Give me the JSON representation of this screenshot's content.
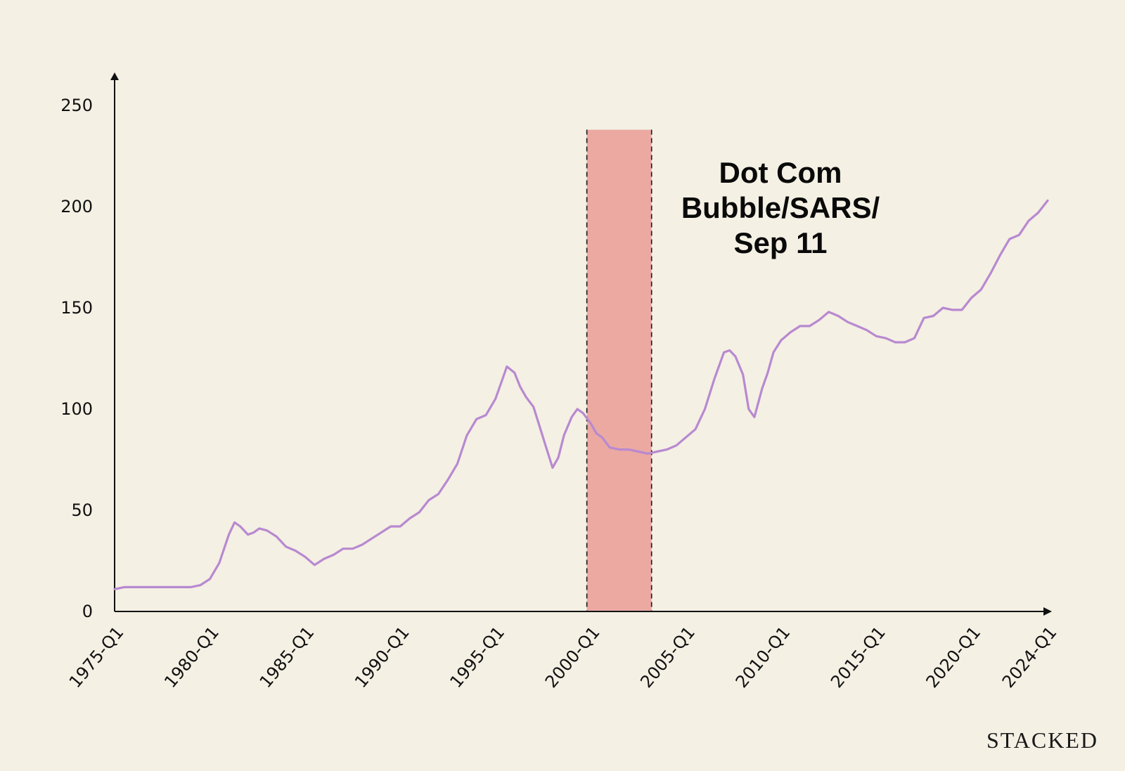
{
  "colors": {
    "background": "#f4f0e4",
    "line": "#b889d0",
    "band": "#e8928c",
    "axis": "#111111"
  },
  "brand": "STACKED",
  "chart_data": {
    "type": "line",
    "title": "",
    "xlabel": "",
    "ylabel": "",
    "ylim": [
      0,
      250
    ],
    "yticks": [
      0,
      50,
      100,
      150,
      200,
      250
    ],
    "xlim": [
      1975.0,
      2024.0
    ],
    "xticks": [
      {
        "value": 1975,
        "label": "1975-Q1"
      },
      {
        "value": 1980,
        "label": "1980-Q1"
      },
      {
        "value": 1985,
        "label": "1985-Q1"
      },
      {
        "value": 1990,
        "label": "1990-Q1"
      },
      {
        "value": 1995,
        "label": "1995-Q1"
      },
      {
        "value": 2000,
        "label": "2000-Q1"
      },
      {
        "value": 2005,
        "label": "2005-Q1"
      },
      {
        "value": 2010,
        "label": "2010-Q1"
      },
      {
        "value": 2015,
        "label": "2015-Q1"
      },
      {
        "value": 2020,
        "label": "2020-Q1"
      },
      {
        "value": 2024,
        "label": "2024-Q1"
      }
    ],
    "grid": false,
    "highlight": {
      "x_start": 1999.8,
      "x_end": 2003.2,
      "y_top": 238,
      "label_lines": [
        "Dot Com",
        "Bubble/SARS/",
        "Sep 11"
      ]
    },
    "series": [
      {
        "x": [
          1975.0,
          1975.5,
          1976.0,
          1977.0,
          1978.0,
          1979.0,
          1979.5,
          1980.0,
          1980.5,
          1981.0,
          1981.3,
          1981.6,
          1982.0,
          1982.3,
          1982.6,
          1983.0,
          1983.5,
          1984.0,
          1984.5,
          1985.0,
          1985.5,
          1986.0,
          1986.5,
          1987.0,
          1987.5,
          1988.0,
          1988.5,
          1989.0,
          1989.5,
          1990.0,
          1990.5,
          1991.0,
          1991.5,
          1992.0,
          1992.5,
          1993.0,
          1993.5,
          1994.0,
          1994.5,
          1995.0,
          1995.3,
          1995.6,
          1996.0,
          1996.3,
          1996.6,
          1997.0,
          1997.3,
          1997.6,
          1998.0,
          1998.3,
          1998.6,
          1999.0,
          1999.3,
          1999.6,
          2000.0,
          2000.3,
          2000.6,
          2001.0,
          2001.5,
          2002.0,
          2002.5,
          2003.0,
          2003.5,
          2004.0,
          2004.5,
          2005.0,
          2005.5,
          2006.0,
          2006.5,
          2007.0,
          2007.3,
          2007.6,
          2008.0,
          2008.3,
          2008.6,
          2009.0,
          2009.3,
          2009.6,
          2010.0,
          2010.5,
          2011.0,
          2011.5,
          2012.0,
          2012.5,
          2013.0,
          2013.5,
          2014.0,
          2014.5,
          2015.0,
          2015.5,
          2016.0,
          2016.5,
          2017.0,
          2017.5,
          2018.0,
          2018.5,
          2019.0,
          2019.5,
          2020.0,
          2020.5,
          2021.0,
          2021.5,
          2022.0,
          2022.5,
          2023.0,
          2023.5,
          2024.0
        ],
        "y": [
          11,
          12,
          12,
          12,
          12,
          12,
          13,
          16,
          24,
          38,
          44,
          42,
          38,
          39,
          41,
          40,
          37,
          32,
          30,
          27,
          23,
          26,
          28,
          31,
          31,
          33,
          36,
          39,
          42,
          42,
          46,
          49,
          55,
          58,
          65,
          73,
          87,
          95,
          97,
          105,
          113,
          121,
          118,
          111,
          106,
          101,
          92,
          83,
          71,
          76,
          87,
          96,
          100,
          98,
          93,
          88,
          86,
          81,
          80,
          80,
          79,
          78,
          79,
          80,
          82,
          86,
          90,
          100,
          115,
          128,
          129,
          126,
          117,
          100,
          96,
          110,
          118,
          128,
          134,
          138,
          141,
          141,
          144,
          148,
          146,
          143,
          141,
          139,
          136,
          135,
          133,
          133,
          135,
          145,
          146,
          150,
          149,
          149,
          155,
          159,
          167,
          176,
          184,
          186,
          193,
          197,
          203
        ]
      }
    ]
  }
}
